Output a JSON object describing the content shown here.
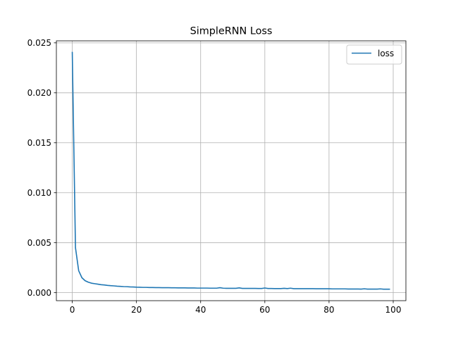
{
  "chart_data": {
    "type": "line",
    "title": "SimpleRNN Loss",
    "xlabel": "",
    "ylabel": "",
    "xlim": [
      -4.95,
      103.95
    ],
    "ylim": [
      -0.0008,
      0.0252
    ],
    "xticks": [
      0,
      20,
      40,
      60,
      80,
      100
    ],
    "yticks": [
      0.0,
      0.005,
      0.01,
      0.015,
      0.02,
      0.025
    ],
    "ytick_labels": [
      "0.000",
      "0.005",
      "0.010",
      "0.015",
      "0.020",
      "0.025"
    ],
    "grid": true,
    "legend_position": "top-right",
    "color": "#1f77b4",
    "series": [
      {
        "name": "loss",
        "x": [
          0,
          1,
          2,
          3,
          4,
          5,
          6,
          7,
          8,
          9,
          10,
          11,
          12,
          13,
          14,
          15,
          16,
          17,
          18,
          19,
          20,
          21,
          22,
          23,
          24,
          25,
          26,
          27,
          28,
          29,
          30,
          31,
          32,
          33,
          34,
          35,
          36,
          37,
          38,
          39,
          40,
          41,
          42,
          43,
          44,
          45,
          46,
          47,
          48,
          49,
          50,
          51,
          52,
          53,
          54,
          55,
          56,
          57,
          58,
          59,
          60,
          61,
          62,
          63,
          64,
          65,
          66,
          67,
          68,
          69,
          70,
          71,
          72,
          73,
          74,
          75,
          76,
          77,
          78,
          79,
          80,
          81,
          82,
          83,
          84,
          85,
          86,
          87,
          88,
          89,
          90,
          91,
          92,
          93,
          94,
          95,
          96,
          97,
          98,
          99
        ],
        "y": [
          0.0241,
          0.0045,
          0.0022,
          0.0015,
          0.0012,
          0.00105,
          0.00095,
          0.0009,
          0.00085,
          0.0008,
          0.00077,
          0.00073,
          0.0007,
          0.00068,
          0.00065,
          0.00063,
          0.00061,
          0.0006,
          0.00058,
          0.00057,
          0.00055,
          0.00054,
          0.00053,
          0.00053,
          0.00052,
          0.00052,
          0.00051,
          0.00051,
          0.0005,
          0.0005,
          0.0005,
          0.00049,
          0.00049,
          0.00048,
          0.00048,
          0.00048,
          0.00047,
          0.00047,
          0.00047,
          0.00046,
          0.00046,
          0.00046,
          0.00046,
          0.00045,
          0.00045,
          0.00045,
          0.0005,
          0.00045,
          0.00044,
          0.00044,
          0.00044,
          0.00044,
          0.00048,
          0.00043,
          0.00043,
          0.00043,
          0.00043,
          0.00043,
          0.00042,
          0.00042,
          0.00047,
          0.00042,
          0.00042,
          0.00041,
          0.00041,
          0.00041,
          0.00044,
          0.00041,
          0.00045,
          0.0004,
          0.0004,
          0.0004,
          0.0004,
          0.0004,
          0.0004,
          0.0004,
          0.00039,
          0.00039,
          0.00039,
          0.00039,
          0.00039,
          0.00038,
          0.00038,
          0.00038,
          0.00038,
          0.00038,
          0.00037,
          0.00037,
          0.00037,
          0.00037,
          0.00036,
          0.00039,
          0.00036,
          0.00036,
          0.00036,
          0.00036,
          0.00038,
          0.00035,
          0.00035,
          0.00035
        ]
      }
    ]
  }
}
